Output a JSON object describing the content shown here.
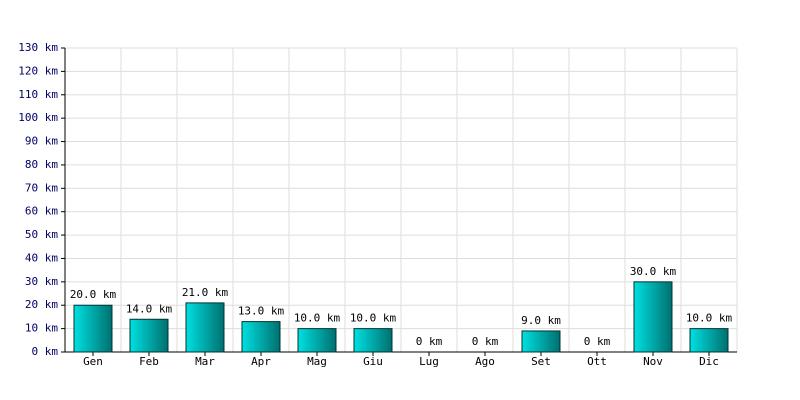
{
  "chart_data": {
    "type": "bar",
    "categories": [
      "Gen",
      "Feb",
      "Mar",
      "Apr",
      "Mag",
      "Giu",
      "Lug",
      "Ago",
      "Set",
      "Ott",
      "Nov",
      "Dic"
    ],
    "values": [
      20,
      14,
      21,
      13,
      10,
      10,
      0,
      0,
      9,
      0,
      30,
      10
    ],
    "value_labels": [
      "20.0 km",
      "14.0 km",
      "21.0 km",
      "13.0 km",
      "10.0 km",
      "10.0 km",
      "0 km",
      "0 km",
      "9.0 km",
      "0 km",
      "30.0 km",
      "10.0 km"
    ],
    "color": "#00e0e0",
    "ylim": [
      0,
      130
    ],
    "yticks": [
      {
        "value": 0,
        "label": "0 km"
      },
      {
        "value": 10,
        "label": "10 km"
      },
      {
        "value": 20,
        "label": "20 km"
      },
      {
        "value": 30,
        "label": "30 km"
      },
      {
        "value": 40,
        "label": "40 km"
      },
      {
        "value": 50,
        "label": "50 km"
      },
      {
        "value": 60,
        "label": "60 km"
      },
      {
        "value": 70,
        "label": "70 km"
      },
      {
        "value": 80,
        "label": "80 km"
      },
      {
        "value": 90,
        "label": "90 km"
      },
      {
        "value": 100,
        "label": "100 km"
      },
      {
        "value": 110,
        "label": "110 km"
      },
      {
        "value": 120,
        "label": "120 km"
      },
      {
        "value": 130,
        "label": "130 km"
      }
    ],
    "grid": true
  }
}
